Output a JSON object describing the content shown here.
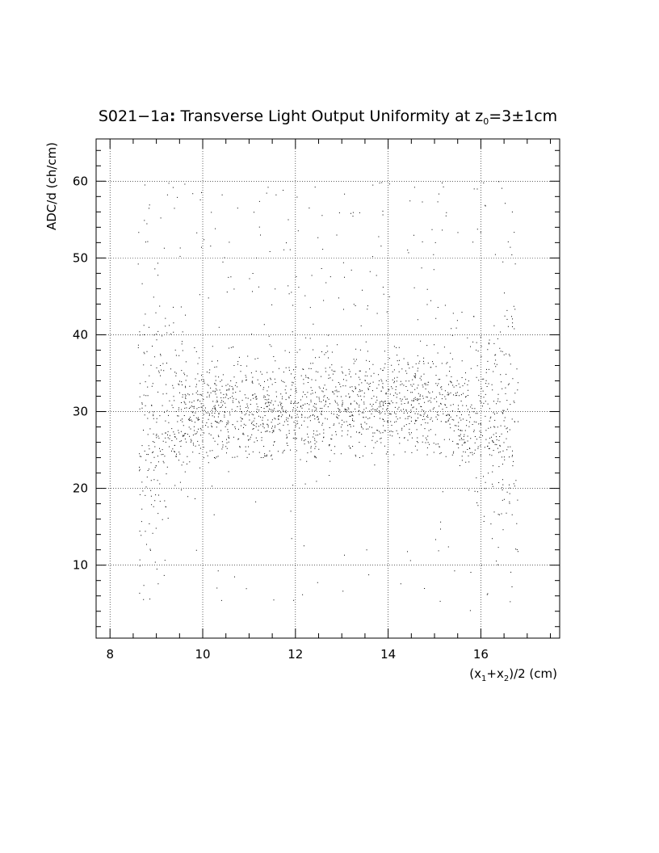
{
  "chart_data": {
    "type": "scatter",
    "title": "S021−1a: Transverse Light Output Uniformity at z₀=3±1cm",
    "title_parts": {
      "main": "S021−1a",
      "colon": ":",
      "rest": " Transverse Light Output Uniformity at z",
      "subscript": "0",
      "tail": "=3±1cm"
    },
    "xlabel": "(x₁+x₂)/2 (cm)",
    "xlabel_parts": {
      "a": "(x",
      "s1": "1",
      "b": "+x",
      "s2": "2",
      "c": ")/2 (cm)"
    },
    "ylabel": "ADC/d (ch/cm)",
    "xlim": [
      7.7,
      17.7
    ],
    "ylim": [
      0.5,
      65.5
    ],
    "x_ticks": [
      8,
      10,
      12,
      14,
      16
    ],
    "x_tick_labels": [
      "8",
      "10",
      "12",
      "14",
      "16"
    ],
    "y_ticks": [
      10,
      20,
      30,
      40,
      50,
      60
    ],
    "y_tick_labels": [
      "10",
      "20",
      "30",
      "40",
      "50",
      "60"
    ],
    "grid": true,
    "grid_style": "dotted",
    "marker_color": "#000000",
    "point_summary": {
      "x_range": [
        8.6,
        16.8
      ],
      "dense_band_y": [
        25,
        35
      ],
      "band_center_y": 30,
      "edge_spread_y": [
        4,
        60
      ],
      "approx_points": 9000
    }
  }
}
